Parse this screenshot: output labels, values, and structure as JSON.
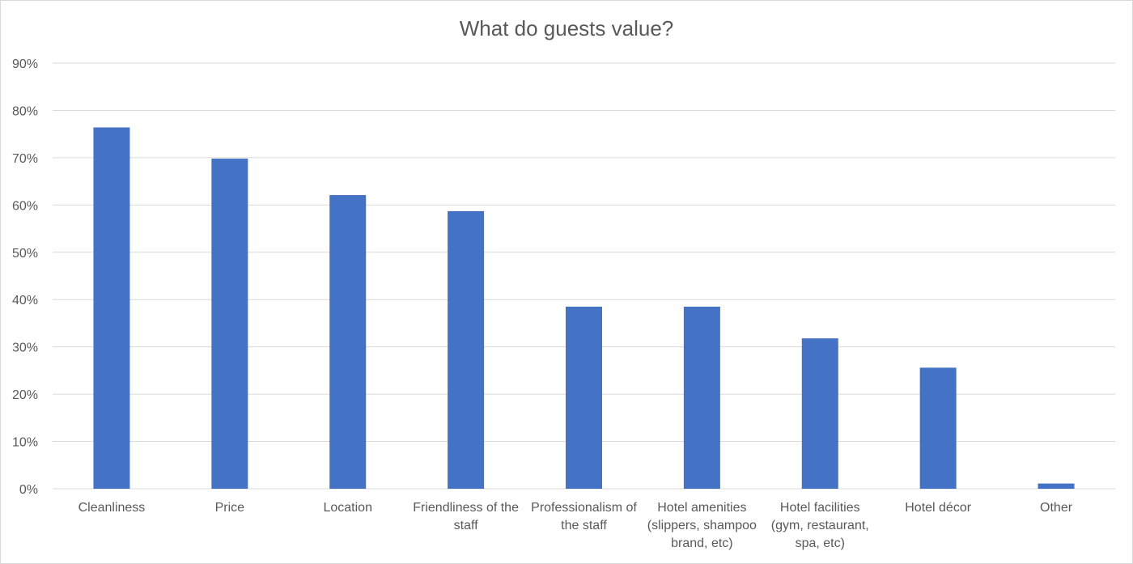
{
  "chart_data": {
    "type": "bar",
    "title": "What do guests value?",
    "xlabel": "",
    "ylabel": "",
    "ylim": [
      0,
      90
    ],
    "yticks": [
      "0%",
      "10%",
      "20%",
      "30%",
      "40%",
      "50%",
      "60%",
      "70%",
      "80%",
      "90%"
    ],
    "categories": [
      "Cleanliness",
      "Price",
      "Location",
      "Friendliness of the staff",
      "Professionalism of the staff",
      "Hotel amenities (slippers, shampoo brand, etc)",
      "Hotel facilities (gym, restaurant, spa, etc)",
      "Hotel décor",
      "Other"
    ],
    "category_lines": [
      [
        "Cleanliness"
      ],
      [
        "Price"
      ],
      [
        "Location"
      ],
      [
        "Friendliness of the",
        "staff"
      ],
      [
        "Professionalism of",
        "the staff"
      ],
      [
        "Hotel amenities",
        "(slippers, shampoo",
        "brand, etc)"
      ],
      [
        "Hotel facilities",
        "(gym, restaurant,",
        "spa, etc)"
      ],
      [
        "Hotel décor"
      ],
      [
        "Other"
      ]
    ],
    "values": [
      76.4,
      69.8,
      62.1,
      58.7,
      38.5,
      38.5,
      31.8,
      25.6,
      1.1
    ],
    "unit": "%",
    "grid": true,
    "legend": "none",
    "bar_color": "#4472c4",
    "grid_color": "#d9d9d9",
    "text_color": "#595959"
  }
}
